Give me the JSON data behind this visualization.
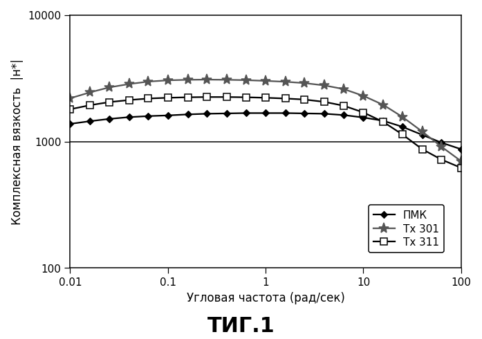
{
  "title": "ΤИГ.1",
  "xlabel": "Угловая частота (рад/сек)",
  "ylabel": "Комплексная вязкость  |н*|",
  "xlim": [
    0.01,
    100
  ],
  "ylim": [
    100,
    10000
  ],
  "hline_y": 1000,
  "PMK": {
    "label": "ПМК",
    "x": [
      0.01,
      0.016,
      0.025,
      0.04,
      0.063,
      0.1,
      0.16,
      0.25,
      0.4,
      0.63,
      1.0,
      1.6,
      2.5,
      4.0,
      6.3,
      10,
      16,
      25,
      40,
      63,
      100
    ],
    "y": [
      1380,
      1450,
      1510,
      1560,
      1590,
      1610,
      1640,
      1660,
      1670,
      1680,
      1680,
      1680,
      1670,
      1660,
      1620,
      1550,
      1460,
      1310,
      1130,
      980,
      870
    ]
  },
  "Tx301": {
    "label": "Tx 301",
    "x": [
      0.01,
      0.016,
      0.025,
      0.04,
      0.063,
      0.1,
      0.16,
      0.25,
      0.4,
      0.63,
      1.0,
      1.6,
      2.5,
      4.0,
      6.3,
      10,
      16,
      25,
      40,
      63,
      100
    ],
    "y": [
      2200,
      2450,
      2680,
      2850,
      2980,
      3050,
      3080,
      3090,
      3080,
      3060,
      3020,
      2970,
      2900,
      2780,
      2600,
      2300,
      1950,
      1570,
      1200,
      910,
      700
    ]
  },
  "Tx311": {
    "label": "Tx 311",
    "x": [
      0.01,
      0.016,
      0.025,
      0.04,
      0.063,
      0.1,
      0.16,
      0.25,
      0.4,
      0.63,
      1.0,
      1.6,
      2.5,
      4.0,
      6.3,
      10,
      16,
      25,
      40,
      63,
      100
    ],
    "y": [
      1800,
      1940,
      2050,
      2130,
      2190,
      2220,
      2240,
      2250,
      2250,
      2240,
      2220,
      2190,
      2150,
      2060,
      1920,
      1700,
      1430,
      1140,
      870,
      720,
      620
    ]
  },
  "background_color": "#ffffff",
  "line_color_PMK": "#000000",
  "line_color_Tx301": "#555555",
  "line_color_Tx311": "#000000",
  "title_fontsize": 20,
  "label_fontsize": 11,
  "tick_fontsize": 10
}
